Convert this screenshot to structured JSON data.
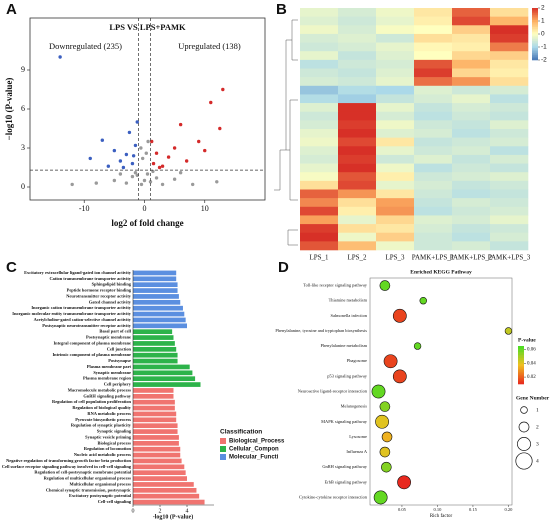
{
  "chart_data": [
    {
      "type": "scatter",
      "panel": "A",
      "title": "LPS VS LPS+PAMK",
      "annotations": [
        "Downregulated (235)",
        "Upregulated (138)"
      ],
      "x_label": "log2 of fold change",
      "y_label": "−log10 (P-value)",
      "xlim": [
        -19,
        20
      ],
      "ylim": [
        -1,
        13
      ],
      "xticks": [
        -10,
        0,
        10
      ],
      "yticks": [
        0,
        3,
        6,
        9
      ],
      "vlines": [
        -1,
        1
      ],
      "hlines": [
        1.3
      ],
      "series": [
        {
          "color": "#9a9a9a",
          "x": [
            -3,
            -2,
            -1.5,
            -0.5,
            0,
            0.5,
            1,
            2,
            3,
            -5,
            5,
            -8,
            8,
            -0.3,
            0.3,
            -0.6,
            0.6,
            -12,
            12,
            -1.2,
            1.4,
            -4,
            6
          ],
          "values": [
            0.3,
            0.8,
            1.1,
            0.2,
            0.5,
            1.0,
            0.4,
            0.7,
            0.2,
            0.5,
            0.6,
            0.3,
            0.2,
            2.2,
            2.6,
            3.0,
            3.5,
            0.2,
            0.4,
            0.9,
            1.2,
            1.0,
            1.1
          ]
        },
        {
          "color": "#3b5fc0",
          "x": [
            -14,
            -7,
            -5,
            -4,
            -3,
            -2,
            -1.5,
            -2.5,
            -1.2,
            -6,
            -9,
            -3.5,
            -1.8
          ],
          "values": [
            10,
            3.6,
            2.8,
            2.0,
            2.5,
            1.8,
            3.2,
            4.2,
            5.0,
            1.6,
            2.2,
            1.5,
            2.4
          ]
        },
        {
          "color": "#d42a2a",
          "x": [
            1.5,
            2,
            3,
            1.2,
            4,
            5,
            7,
            9,
            10,
            11,
            13,
            12.5,
            2.5,
            6
          ],
          "values": [
            1.8,
            2.6,
            1.6,
            3.5,
            2.3,
            3.0,
            2.0,
            3.5,
            2.8,
            6.5,
            7.5,
            4.5,
            1.5,
            4.8
          ]
        }
      ]
    },
    {
      "type": "heatmap",
      "panel": "B",
      "x": [
        "LPS_1",
        "LPS_2",
        "LPS_3",
        "PAMK+LPS_1",
        "PAMK+LPS_2",
        "PAMK+LPS_3"
      ],
      "color_lim": [
        -2,
        2
      ],
      "color_ticks": [
        2,
        1,
        0,
        -1,
        -2
      ],
      "colors": [
        "#4575b4",
        "#abd9e9",
        "#ffffbf",
        "#fdae61",
        "#d73027"
      ],
      "values": [
        [
          -0.3,
          -0.5,
          -0.2,
          0.3,
          1.6,
          0.4
        ],
        [
          -0.4,
          -0.6,
          -0.3,
          0.2,
          1.8,
          0.9
        ],
        [
          -0.2,
          -0.5,
          -0.1,
          0.0,
          0.6,
          2.0
        ],
        [
          -0.5,
          -0.4,
          -0.6,
          0.4,
          0.3,
          1.9
        ],
        [
          -0.6,
          -0.5,
          -0.3,
          0.1,
          0.2,
          1.4
        ],
        [
          -0.3,
          -0.7,
          -0.4,
          0.0,
          0.5,
          0.6
        ],
        [
          -0.8,
          -0.6,
          -0.5,
          1.7,
          0.9,
          0.3
        ],
        [
          -0.6,
          -0.7,
          -0.4,
          1.9,
          0.5,
          0.2
        ],
        [
          -0.5,
          -0.6,
          -0.3,
          1.5,
          1.2,
          0.4
        ],
        [
          -1.2,
          -0.9,
          -1.0,
          -0.4,
          -0.6,
          -0.5
        ],
        [
          -0.9,
          -1.1,
          -0.7,
          -0.5,
          -0.3,
          -0.8
        ],
        [
          -0.4,
          2.0,
          -0.3,
          -0.7,
          -0.5,
          -0.6
        ],
        [
          -0.6,
          2.0,
          -0.5,
          -0.8,
          -0.6,
          -0.7
        ],
        [
          -0.5,
          1.9,
          -0.2,
          -0.6,
          -0.7,
          -0.4
        ],
        [
          -0.3,
          2.0,
          -0.4,
          -0.5,
          -0.8,
          -0.6
        ],
        [
          -0.2,
          1.8,
          0.3,
          -0.7,
          -0.6,
          -0.5
        ],
        [
          -0.4,
          2.0,
          -0.3,
          -0.6,
          -0.5,
          -0.8
        ],
        [
          -0.5,
          1.9,
          -0.6,
          -0.4,
          -0.7,
          -0.5
        ],
        [
          -0.3,
          2.0,
          -0.2,
          -0.8,
          -0.6,
          -0.7
        ],
        [
          -0.1,
          1.7,
          0.2,
          -0.6,
          -0.5,
          -0.4
        ],
        [
          0.4,
          1.8,
          -0.3,
          -0.5,
          -0.7,
          -0.6
        ],
        [
          1.6,
          1.2,
          0.3,
          -0.6,
          -0.8,
          -0.7
        ],
        [
          1.3,
          0.4,
          1.1,
          -0.7,
          -0.5,
          -0.6
        ],
        [
          1.8,
          0.2,
          1.2,
          -0.8,
          -0.6,
          -0.5
        ],
        [
          1.1,
          -0.3,
          0.5,
          -0.4,
          -0.5,
          -0.3
        ],
        [
          1.9,
          0.4,
          0.3,
          -0.5,
          -0.7,
          -0.6
        ],
        [
          2.0,
          -0.2,
          0.6,
          -0.6,
          -0.8,
          -0.5
        ],
        [
          1.7,
          0.8,
          -0.2,
          -0.6,
          -0.5,
          -0.7
        ]
      ]
    },
    {
      "type": "bar",
      "panel": "C",
      "x_label": "-log10 (P-value)",
      "legend_title": "Classification",
      "xlim": [
        0,
        6
      ],
      "xticks": [
        0,
        2,
        4
      ],
      "series": [
        {
          "name": "Molecular_Functi",
          "color": "#5b8fe0",
          "categories": [
            "Excitatory extracellular ligand-gated ion channel activity",
            "Cation transmembrane transporter activity",
            "Sphingolipid binding",
            "Peptide hormone receptor binding",
            "Neurotransmitter receptor activity",
            "Gated channel activity",
            "Inorganic cation transmembrane transporter activity",
            "Inorganic molecular entity transmembrane transporter activity",
            "Acetylcholine-gated cation-selective channel activity",
            "Postsynaptic neurotransmitter receptor activity"
          ],
          "values": [
            3.2,
            3.2,
            3.3,
            3.3,
            3.4,
            3.5,
            3.7,
            3.8,
            3.9,
            4.0
          ]
        },
        {
          "name": "Cellular_Compon",
          "color": "#2db34a",
          "categories": [
            "Basal part of cell",
            "Postsynaptic membrane",
            "Integral component of plasma membrane",
            "Cell junction",
            "Intrinsic component of plasma membrane",
            "Postsynapse",
            "Plasma membrane part",
            "Synaptic membrane",
            "Plasma membrane region",
            "Cell periphery"
          ],
          "values": [
            2.9,
            3.0,
            3.1,
            3.2,
            3.3,
            3.3,
            4.2,
            4.4,
            4.6,
            5.0
          ]
        },
        {
          "name": "Biological_Process",
          "color": "#f07470",
          "categories": [
            "Macromolecule metabolic process",
            "GnRH signaling pathway",
            "Regulation of cell population proliferation",
            "Regulation of biological quality",
            "RNA metabolic process",
            "Pyruvate biosynthetic process",
            "Regulation of synaptic plasticity",
            "Synaptic signaling",
            "Synaptic vesicle priming",
            "Biological process",
            "Regulation of locomotion",
            "Nucleic acid metabolic process",
            "Negative regulation of transforming growth factor beta production",
            "Cell surface receptor signaling pathway involved in cell-cell signaling",
            "Regulation of cell-postsynaptic membrane potential",
            "Regulation of multicellular organismal process",
            "Multicellular organismal process",
            "Chemical synaptic transmission, postsynaptic",
            "Excitatory postsynaptic potential",
            "Cell-cell signaling"
          ],
          "values": [
            3.0,
            3.0,
            3.1,
            3.1,
            3.2,
            3.2,
            3.3,
            3.3,
            3.4,
            3.4,
            3.5,
            3.5,
            3.6,
            3.8,
            3.9,
            4.0,
            4.5,
            4.7,
            4.9,
            5.3
          ]
        }
      ]
    },
    {
      "type": "bubble",
      "panel": "D",
      "title": "Enriched KEGG Pathway",
      "x_label": "Rich factor",
      "color_title": "P-value",
      "size_title": "Gene Number",
      "xlim": [
        0.005,
        0.205
      ],
      "xticks": [
        {
          "value": 0.05,
          "label": "0.05"
        },
        {
          "value": 0.1,
          "label": "0.10"
        },
        {
          "value": 0.15,
          "label": "0.15"
        },
        {
          "value": 0.2,
          "label": "0.20"
        }
      ],
      "color_lim": [
        0.01,
        0.065
      ],
      "color_ticks": [
        0.02,
        0.04,
        0.06
      ],
      "colors": [
        "#e8281e",
        "#f0c020",
        "#44dd22"
      ],
      "size_ticks": [
        1,
        2,
        3,
        4
      ],
      "categories": [
        "Toll-like receptor signaling pathway",
        "Thiamine metabolism",
        "Salmonella infection",
        "Phenylalanine, tyrosine and tryptophan biosynthesis",
        "Phenylalanine metabolism",
        "Phagosome",
        "p53 signaling pathway",
        "Neuroactive ligand-receptor interaction",
        "Melanogenesis",
        "MAPK signaling pathway",
        "Lysosome",
        "Influenza A",
        "GnRH signaling pathway",
        "ErbB signaling pathway",
        "Cytokine-cytokine receptor interaction"
      ],
      "rich_factor": [
        0.026,
        0.08,
        0.047,
        0.2,
        0.072,
        0.034,
        0.047,
        0.017,
        0.026,
        0.022,
        0.029,
        0.026,
        0.028,
        0.053,
        0.02
      ],
      "gene_number": [
        2,
        1,
        3,
        1,
        1,
        3,
        3,
        3,
        2,
        3,
        2,
        2,
        2,
        3,
        3
      ],
      "p_value": [
        0.06,
        0.06,
        0.015,
        0.045,
        0.06,
        0.015,
        0.015,
        0.06,
        0.055,
        0.04,
        0.035,
        0.04,
        0.055,
        0.01,
        0.06
      ]
    }
  ]
}
